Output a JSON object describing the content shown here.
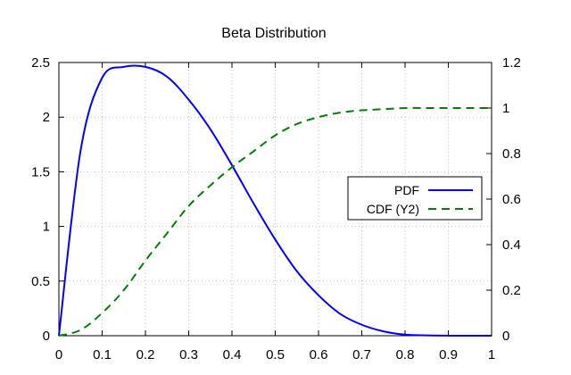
{
  "colors": {
    "background": "#ffffff",
    "axis": "#000000",
    "grid": "#c0c0c0",
    "pdf": "#0000ff",
    "cdf": "#008000"
  },
  "chart_data": {
    "type": "line",
    "title": "Beta Distribution",
    "xlabel": "",
    "ylabel": "",
    "y2label": "",
    "grid": true,
    "legend_placement": "right",
    "xlim": [
      0,
      1
    ],
    "ylim": [
      0,
      2.5
    ],
    "y2lim": [
      0,
      1.2
    ],
    "x_ticks": [
      0,
      0.1,
      0.2,
      0.3,
      0.4,
      0.5,
      0.6,
      0.7,
      0.8,
      0.9,
      1
    ],
    "x_tick_labels": [
      "0",
      "0.1",
      "0.2",
      "0.3",
      "0.4",
      "0.5",
      "0.6",
      "0.7",
      "0.8",
      "0.9",
      "1"
    ],
    "y_ticks": [
      0,
      0.5,
      1,
      1.5,
      2,
      2.5
    ],
    "y_tick_labels": [
      "0",
      "0.5",
      "1",
      "1.5",
      "2",
      "2.5"
    ],
    "y2_ticks": [
      0,
      0.2,
      0.4,
      0.6,
      0.8,
      1,
      1.2
    ],
    "y2_tick_labels": [
      "0",
      "0.2",
      "0.4",
      "0.6",
      "0.8",
      "1",
      "1.2"
    ],
    "x": [
      0,
      0.05,
      0.1,
      0.15,
      0.2,
      0.25,
      0.3,
      0.35,
      0.4,
      0.45,
      0.5,
      0.55,
      0.6,
      0.65,
      0.7,
      0.75,
      0.8,
      0.85,
      0.9,
      0.95,
      1
    ],
    "series": [
      {
        "name": "PDF",
        "axis": "y",
        "style": "solid",
        "color": "#0000ff",
        "values": [
          0,
          1.69,
          2.36,
          2.46,
          2.46,
          2.37,
          2.16,
          1.89,
          1.56,
          1.21,
          0.88,
          0.59,
          0.37,
          0.2,
          0.1,
          0.04,
          0.01,
          0.003,
          0.0005,
          0,
          0
        ]
      },
      {
        "name": "CDF (Y2)",
        "axis": "y2",
        "style": "dashed",
        "color": "#008000",
        "values": [
          0,
          0.025,
          0.1,
          0.2,
          0.33,
          0.45,
          0.57,
          0.66,
          0.74,
          0.81,
          0.88,
          0.93,
          0.96,
          0.98,
          0.99,
          0.995,
          1,
          1,
          1,
          1,
          1
        ]
      }
    ]
  }
}
